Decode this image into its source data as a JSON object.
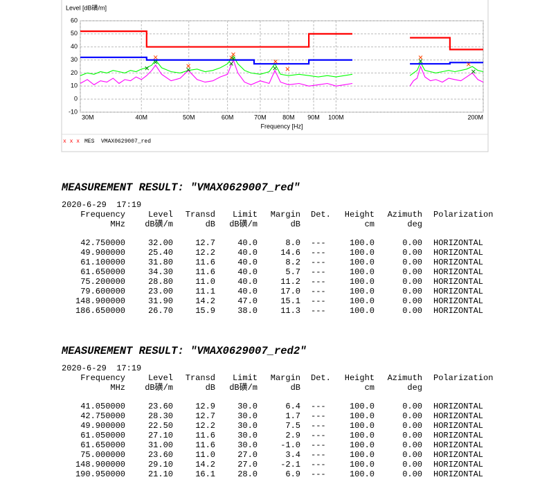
{
  "chart_data": {
    "type": "line",
    "y_label": "Level [dB磺/m]",
    "x_label": "Frequency [Hz]",
    "xscale": "log",
    "xlim": [
      30,
      200
    ],
    "xticks": [
      {
        "value": 30,
        "label": "30M"
      },
      {
        "value": 40,
        "label": "40M"
      },
      {
        "value": 50,
        "label": "50M"
      },
      {
        "value": 60,
        "label": "60M"
      },
      {
        "value": 70,
        "label": "70M"
      },
      {
        "value": 80,
        "label": "80M"
      },
      {
        "value": 90,
        "label": "90M"
      },
      {
        "value": 100,
        "label": "100M"
      },
      {
        "value": 200,
        "label": "200M"
      }
    ],
    "ylim": [
      -10,
      60
    ],
    "yticks": [
      -10,
      0,
      10,
      20,
      30,
      40,
      50,
      60
    ],
    "grid": true,
    "series": [
      {
        "color": "#00ff00",
        "x": [
          30,
          31,
          32,
          33,
          34,
          35,
          36,
          37,
          38,
          39,
          40,
          41,
          42,
          42.75,
          44,
          46,
          48,
          49.9,
          52,
          54,
          56,
          58,
          60,
          61.65,
          63,
          65,
          67,
          70,
          73,
          75,
          77,
          80,
          84,
          88,
          92,
          96,
          100,
          104,
          108,
          125,
          141.6,
          144,
          146.5,
          148.9,
          152,
          156,
          160,
          165,
          170,
          175,
          180,
          185,
          190,
          195,
          200
        ],
        "values": [
          18,
          20,
          19,
          21,
          20,
          22,
          21,
          20,
          22,
          21,
          23,
          24,
          26,
          30,
          24,
          21,
          20,
          22,
          23,
          21,
          22,
          24,
          27,
          33,
          27,
          22,
          20,
          19,
          21,
          27,
          19,
          18,
          19,
          18,
          17,
          18,
          17,
          18,
          19,
          null,
          18,
          20,
          22,
          28,
          22,
          21,
          20,
          21,
          22,
          21,
          22,
          23,
          25,
          22,
          21
        ]
      },
      {
        "color": "#ff00ff",
        "x": [
          30,
          31,
          32,
          33,
          34,
          35,
          36,
          37,
          38,
          39,
          40,
          41,
          42,
          42.75,
          44,
          46,
          48,
          49.9,
          52,
          54,
          56,
          58,
          60,
          61.65,
          63,
          65,
          67,
          70,
          73,
          75,
          77,
          80,
          84,
          88,
          92,
          96,
          100,
          104,
          108,
          125,
          141.6,
          144,
          146.5,
          148.9,
          152,
          156,
          160,
          165,
          170,
          175,
          180,
          185,
          190,
          195,
          200
        ],
        "values": [
          12,
          15,
          11,
          14,
          13,
          16,
          12,
          15,
          14,
          17,
          15,
          18,
          22,
          26,
          19,
          14,
          16,
          22,
          15,
          13,
          14,
          17,
          19,
          30,
          20,
          13,
          11,
          14,
          12,
          22,
          13,
          11,
          12,
          10,
          11,
          12,
          10,
          11,
          12,
          null,
          10,
          14,
          16,
          25,
          17,
          14,
          15,
          13,
          16,
          15,
          14,
          17,
          20,
          15,
          13
        ]
      },
      {
        "color": "#ff0000",
        "x": [
          30,
          41,
          41,
          88,
          88,
          108,
          125,
          141.6,
          171,
          171,
          200
        ],
        "values": [
          52,
          52,
          40,
          40,
          50,
          50,
          null,
          47,
          47,
          38,
          38
        ]
      },
      {
        "color": "#0000ff",
        "x": [
          30,
          41,
          41,
          68,
          68,
          88,
          88,
          108,
          125,
          141.6,
          171,
          171,
          200
        ],
        "values": [
          32,
          32,
          30,
          30,
          27,
          27,
          30,
          30,
          null,
          27,
          27,
          28,
          28
        ]
      }
    ]
  },
  "legend": {
    "markers": "x x x",
    "label": "MES  VMAX0629007_red"
  },
  "tables": [
    {
      "title": "MEASUREMENT RESULT: \"VMAX0629007_red\"",
      "marker_color": "#ff4400",
      "date": "2020-6-29  17:19",
      "header": [
        [
          "Frequency",
          "Level",
          "Transd",
          "Limit",
          "Margin",
          "Det.",
          "Height",
          "Azimuth",
          "Polarization"
        ],
        [
          "MHz",
          "dB磺/m",
          "dB",
          "dB磺/m",
          "dB",
          null,
          "cm",
          "deg",
          null
        ]
      ],
      "rows": [
        [
          "42.750000",
          "32.00",
          "12.7",
          "40.0",
          "8.0",
          "---",
          "100.0",
          "0.00",
          "HORIZONTAL"
        ],
        [
          "49.900000",
          "25.40",
          "12.2",
          "40.0",
          "14.6",
          "---",
          "100.0",
          "0.00",
          "HORIZONTAL"
        ],
        [
          "61.100000",
          "31.80",
          "11.6",
          "40.0",
          "8.2",
          "---",
          "100.0",
          "0.00",
          "HORIZONTAL"
        ],
        [
          "61.650000",
          "34.30",
          "11.6",
          "40.0",
          "5.7",
          "---",
          "100.0",
          "0.00",
          "HORIZONTAL"
        ],
        [
          "75.200000",
          "28.80",
          "11.0",
          "40.0",
          "11.2",
          "---",
          "100.0",
          "0.00",
          "HORIZONTAL"
        ],
        [
          "79.600000",
          "23.00",
          "11.1",
          "40.0",
          "17.0",
          "---",
          "100.0",
          "0.00",
          "HORIZONTAL"
        ],
        [
          "148.900000",
          "31.90",
          "14.2",
          "47.0",
          "15.1",
          "---",
          "100.0",
          "0.00",
          "HORIZONTAL"
        ],
        [
          "186.650000",
          "26.70",
          "15.9",
          "38.0",
          "11.3",
          "---",
          "100.0",
          "0.00",
          "HORIZONTAL"
        ]
      ]
    },
    {
      "title": "MEASUREMENT RESULT: \"VMAX0629007_red2\"",
      "marker_color": "#008800",
      "date": "2020-6-29  17:19",
      "header": [
        [
          "Frequency",
          "Level",
          "Transd",
          "Limit",
          "Margin",
          "Det.",
          "Height",
          "Azimuth",
          "Polarization"
        ],
        [
          "MHz",
          "dB磺/m",
          "dB",
          "dB磺/m",
          "dB",
          null,
          "cm",
          "deg",
          null
        ]
      ],
      "rows": [
        [
          "41.050000",
          "23.60",
          "12.9",
          "30.0",
          "6.4",
          "---",
          "100.0",
          "0.00",
          "HORIZONTAL"
        ],
        [
          "42.750000",
          "28.30",
          "12.7",
          "30.0",
          "1.7",
          "---",
          "100.0",
          "0.00",
          "HORIZONTAL"
        ],
        [
          "49.900000",
          "22.50",
          "12.2",
          "30.0",
          "7.5",
          "---",
          "100.0",
          "0.00",
          "HORIZONTAL"
        ],
        [
          "61.050000",
          "27.10",
          "11.6",
          "30.0",
          "2.9",
          "---",
          "100.0",
          "0.00",
          "HORIZONTAL"
        ],
        [
          "61.650000",
          "31.00",
          "11.6",
          "30.0",
          "-1.0",
          "---",
          "100.0",
          "0.00",
          "HORIZONTAL"
        ],
        [
          "75.000000",
          "23.60",
          "11.0",
          "27.0",
          "3.4",
          "---",
          "100.0",
          "0.00",
          "HORIZONTAL"
        ],
        [
          "148.900000",
          "29.10",
          "14.2",
          "27.0",
          "-2.1",
          "---",
          "100.0",
          "0.00",
          "HORIZONTAL"
        ],
        [
          "190.950000",
          "21.10",
          "16.1",
          "28.0",
          "6.9",
          "---",
          "100.0",
          "0.00",
          "HORIZONTAL"
        ]
      ]
    }
  ]
}
